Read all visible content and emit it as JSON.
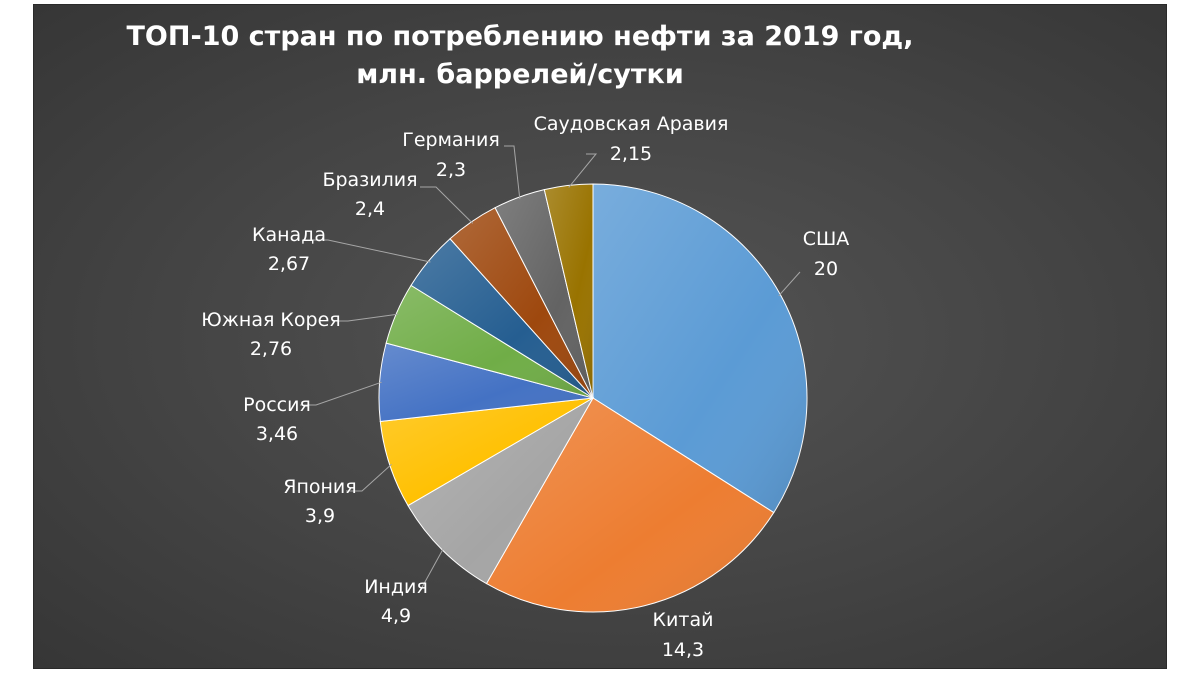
{
  "chart_data": {
    "type": "pie",
    "title": [
      "ТОП-10 стран по потреблению нефти за 2019 год,",
      "млн. баррелей/сутки"
    ],
    "slices": [
      {
        "name": "США",
        "value": 20,
        "value_label": "20",
        "color": "#5b9bd5"
      },
      {
        "name": "Китай",
        "value": 14.3,
        "value_label": "14,3",
        "color": "#ed7d31"
      },
      {
        "name": "Индия",
        "value": 4.9,
        "value_label": "4,9",
        "color": "#a5a5a5"
      },
      {
        "name": "Япония",
        "value": 3.9,
        "value_label": "3,9",
        "color": "#ffc000"
      },
      {
        "name": "Россия",
        "value": 3.46,
        "value_label": "3,46",
        "color": "#4472c4"
      },
      {
        "name": "Южная Корея",
        "value": 2.76,
        "value_label": "2,76",
        "color": "#70ad47"
      },
      {
        "name": "Канада",
        "value": 2.67,
        "value_label": "2,67",
        "color": "#255e91"
      },
      {
        "name": "Бразилия",
        "value": 2.4,
        "value_label": "2,4",
        "color": "#9e480e"
      },
      {
        "name": "Германия",
        "value": 2.3,
        "value_label": "2,3",
        "color": "#636363"
      },
      {
        "name": "Саудовская Аравия",
        "value": 2.15,
        "value_label": "2,15",
        "color": "#997300"
      }
    ],
    "legend": "none",
    "background": "#444444"
  }
}
